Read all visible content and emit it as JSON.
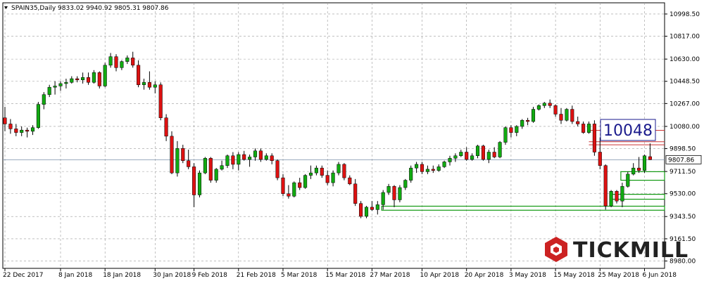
{
  "header": {
    "symbol_line": "SPAIN35,Daily  9833.02 9940.92 9805.31 9807.86"
  },
  "brand": {
    "logo_text": "TICKMILL"
  },
  "annotation": {
    "label": "10048"
  },
  "colors": {
    "bull": "#11aa11",
    "bear": "#dd1111",
    "grid": "#9a9a9a",
    "level_red": "#cc3333",
    "level_green": "#119911",
    "label_box": "#1a1a8c"
  },
  "chart_data": {
    "type": "candlestick",
    "title": "",
    "ylim": [
      8920,
      11090
    ],
    "y_ticks": [
      10998.5,
      10817.0,
      10630.0,
      10448.5,
      10267.0,
      10080.0,
      9898.5,
      9711.5,
      9530.0,
      9343.5,
      9161.5,
      8980.0
    ],
    "y_tick_labels": [
      "10998.50",
      "10817.00",
      "10630.00",
      "10448.50",
      "10267.00",
      "10080.00",
      "9898.50",
      "9711.50",
      "9530.00",
      "9343.50",
      "9161.50",
      "8980.00"
    ],
    "x_tick_labels": [
      {
        "i": 0,
        "label": "22 Dec 2017"
      },
      {
        "i": 10,
        "label": "8 Jan 2018"
      },
      {
        "i": 18,
        "label": "18 Jan 2018"
      },
      {
        "i": 27,
        "label": "30 Jan 2018"
      },
      {
        "i": 34,
        "label": "9 Feb 2018"
      },
      {
        "i": 42,
        "label": "21 Feb 2018"
      },
      {
        "i": 50,
        "label": "5 Mar 2018"
      },
      {
        "i": 58,
        "label": "15 Mar 2018"
      },
      {
        "i": 66,
        "label": "27 Mar 2018"
      },
      {
        "i": 75,
        "label": "10 Apr 2018"
      },
      {
        "i": 83,
        "label": "20 Apr 2018"
      },
      {
        "i": 91,
        "label": "3 May 2018"
      },
      {
        "i": 99,
        "label": "15 May 2018"
      },
      {
        "i": 107,
        "label": "25 May 2018"
      },
      {
        "i": 115,
        "label": "6 Jun 2018"
      }
    ],
    "current_price": 9807.86,
    "current_price_label": "9807.86",
    "levels_red": [
      10048,
      9955,
      9930
    ],
    "levels_green": [
      9710,
      9640,
      9525,
      9485,
      9428,
      9395
    ],
    "candles": [
      [
        10150,
        10240,
        10040,
        10100
      ],
      [
        10100,
        10140,
        10020,
        10060
      ],
      [
        10060,
        10100,
        10000,
        10030
      ],
      [
        10030,
        10080,
        10000,
        10050
      ],
      [
        10050,
        10070,
        9990,
        10040
      ],
      [
        10040,
        10090,
        10010,
        10070
      ],
      [
        10070,
        10280,
        10060,
        10260
      ],
      [
        10260,
        10360,
        10220,
        10340
      ],
      [
        10340,
        10420,
        10320,
        10400
      ],
      [
        10400,
        10450,
        10340,
        10410
      ],
      [
        10410,
        10450,
        10370,
        10430
      ],
      [
        10430,
        10470,
        10390,
        10440
      ],
      [
        10440,
        10490,
        10430,
        10470
      ],
      [
        10470,
        10490,
        10440,
        10460
      ],
      [
        10460,
        10520,
        10430,
        10480
      ],
      [
        10480,
        10520,
        10420,
        10440
      ],
      [
        10440,
        10540,
        10430,
        10520
      ],
      [
        10520,
        10530,
        10390,
        10410
      ],
      [
        10410,
        10600,
        10400,
        10580
      ],
      [
        10580,
        10680,
        10560,
        10650
      ],
      [
        10650,
        10670,
        10530,
        10560
      ],
      [
        10560,
        10620,
        10540,
        10610
      ],
      [
        10610,
        10660,
        10590,
        10640
      ],
      [
        10640,
        10690,
        10560,
        10580
      ],
      [
        10580,
        10620,
        10400,
        10420
      ],
      [
        10420,
        10470,
        10380,
        10440
      ],
      [
        10440,
        10530,
        10380,
        10400
      ],
      [
        10400,
        10450,
        10350,
        10420
      ],
      [
        10420,
        10440,
        10130,
        10150
      ],
      [
        10150,
        10180,
        9960,
        10000
      ],
      [
        10000,
        10040,
        9690,
        9700
      ],
      [
        9700,
        9960,
        9670,
        9900
      ],
      [
        9900,
        9930,
        9780,
        9800
      ],
      [
        9800,
        9890,
        9730,
        9750
      ],
      [
        9750,
        9780,
        9420,
        9520
      ],
      [
        9520,
        9720,
        9500,
        9700
      ],
      [
        9700,
        9830,
        9690,
        9820
      ],
      [
        9820,
        9830,
        9620,
        9640
      ],
      [
        9640,
        9740,
        9620,
        9730
      ],
      [
        9730,
        9800,
        9720,
        9760
      ],
      [
        9760,
        9850,
        9740,
        9840
      ],
      [
        9840,
        9870,
        9730,
        9770
      ],
      [
        9770,
        9870,
        9720,
        9850
      ],
      [
        9850,
        9880,
        9800,
        9810
      ],
      [
        9810,
        9850,
        9750,
        9830
      ],
      [
        9830,
        9900,
        9800,
        9880
      ],
      [
        9880,
        9900,
        9790,
        9810
      ],
      [
        9810,
        9860,
        9800,
        9840
      ],
      [
        9840,
        9860,
        9770,
        9800
      ],
      [
        9800,
        9810,
        9640,
        9660
      ],
      [
        9660,
        9690,
        9510,
        9530
      ],
      [
        9530,
        9600,
        9490,
        9510
      ],
      [
        9510,
        9630,
        9500,
        9620
      ],
      [
        9620,
        9660,
        9560,
        9580
      ],
      [
        9580,
        9690,
        9570,
        9680
      ],
      [
        9680,
        9760,
        9650,
        9700
      ],
      [
        9700,
        9760,
        9680,
        9740
      ],
      [
        9740,
        9760,
        9660,
        9680
      ],
      [
        9680,
        9720,
        9600,
        9620
      ],
      [
        9620,
        9720,
        9590,
        9700
      ],
      [
        9700,
        9790,
        9680,
        9770
      ],
      [
        9770,
        9780,
        9640,
        9660
      ],
      [
        9660,
        9680,
        9600,
        9610
      ],
      [
        9610,
        9650,
        9430,
        9450
      ],
      [
        9450,
        9470,
        9330,
        9345
      ],
      [
        9345,
        9430,
        9330,
        9420
      ],
      [
        9420,
        9470,
        9390,
        9400
      ],
      [
        9400,
        9470,
        9360,
        9440
      ],
      [
        9440,
        9560,
        9400,
        9540
      ],
      [
        9540,
        9610,
        9520,
        9590
      ],
      [
        9590,
        9600,
        9420,
        9480
      ],
      [
        9480,
        9600,
        9460,
        9580
      ],
      [
        9580,
        9650,
        9560,
        9640
      ],
      [
        9640,
        9760,
        9620,
        9740
      ],
      [
        9740,
        9790,
        9700,
        9770
      ],
      [
        9770,
        9790,
        9690,
        9710
      ],
      [
        9710,
        9760,
        9690,
        9730
      ],
      [
        9730,
        9760,
        9700,
        9720
      ],
      [
        9720,
        9770,
        9710,
        9750
      ],
      [
        9750,
        9800,
        9740,
        9790
      ],
      [
        9790,
        9840,
        9760,
        9820
      ],
      [
        9820,
        9860,
        9790,
        9840
      ],
      [
        9840,
        9890,
        9830,
        9870
      ],
      [
        9870,
        9910,
        9800,
        9810
      ],
      [
        9810,
        9860,
        9800,
        9840
      ],
      [
        9840,
        9930,
        9820,
        9920
      ],
      [
        9920,
        9930,
        9800,
        9810
      ],
      [
        9810,
        9890,
        9780,
        9870
      ],
      [
        9870,
        9910,
        9820,
        9830
      ],
      [
        9830,
        9960,
        9820,
        9950
      ],
      [
        9950,
        10080,
        9930,
        10070
      ],
      [
        10070,
        10090,
        9990,
        10030
      ],
      [
        10030,
        10090,
        10000,
        10080
      ],
      [
        10080,
        10140,
        10060,
        10130
      ],
      [
        10130,
        10150,
        10090,
        10120
      ],
      [
        10120,
        10240,
        10110,
        10220
      ],
      [
        10220,
        10260,
        10210,
        10250
      ],
      [
        10250,
        10280,
        10230,
        10270
      ],
      [
        10270,
        10300,
        10230,
        10250
      ],
      [
        10250,
        10260,
        10160,
        10180
      ],
      [
        10180,
        10230,
        10100,
        10130
      ],
      [
        10130,
        10230,
        10120,
        10220
      ],
      [
        10220,
        10250,
        10100,
        10120
      ],
      [
        10120,
        10160,
        10080,
        10100
      ],
      [
        10100,
        10120,
        10020,
        10030
      ],
      [
        10030,
        10120,
        10020,
        10100
      ],
      [
        10100,
        10130,
        9840,
        9870
      ],
      [
        9870,
        9990,
        9730,
        9760
      ],
      [
        9760,
        9770,
        9400,
        9430
      ],
      [
        9430,
        9560,
        9420,
        9550
      ],
      [
        9550,
        9560,
        9450,
        9470
      ],
      [
        9470,
        9620,
        9420,
        9590
      ],
      [
        9590,
        9710,
        9580,
        9690
      ],
      [
        9690,
        9780,
        9680,
        9740
      ],
      [
        9740,
        9830,
        9700,
        9720
      ],
      [
        9720,
        9850,
        9700,
        9840
      ],
      [
        9833.02,
        9940.92,
        9805.31,
        9807.86
      ]
    ]
  }
}
